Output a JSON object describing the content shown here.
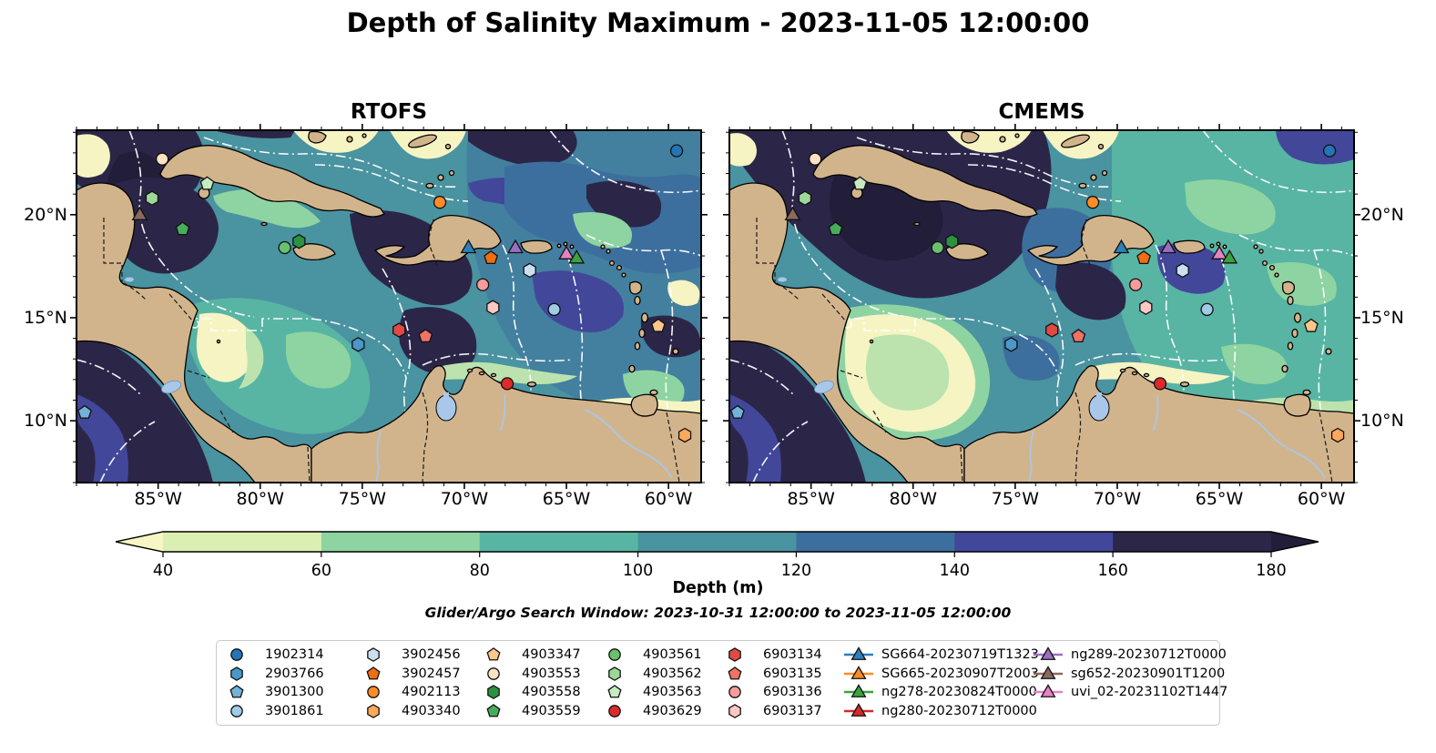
{
  "title": "Depth of Salinity Maximum - 2023-11-05 12:00:00",
  "subtitle": "Glider/Argo Search Window: 2023-10-31 12:00:00 to 2023-11-05 12:00:00",
  "panels": [
    {
      "id": "rtofs",
      "title": "RTOFS"
    },
    {
      "id": "cmems",
      "title": "CMEMS"
    }
  ],
  "axes": {
    "extent": {
      "lon_min": -89.0,
      "lon_max": -58.4,
      "lat_min": 7.0,
      "lat_max": 24.1
    },
    "lon_ticks": [
      {
        "v": -85,
        "label": "85°W"
      },
      {
        "v": -80,
        "label": "80°W"
      },
      {
        "v": -75,
        "label": "75°W"
      },
      {
        "v": -70,
        "label": "70°W"
      },
      {
        "v": -65,
        "label": "65°W"
      },
      {
        "v": -60,
        "label": "60°W"
      }
    ],
    "lat_ticks": [
      {
        "v": 20,
        "label": "20°N"
      },
      {
        "v": 15,
        "label": "15°N"
      },
      {
        "v": 10,
        "label": "10°N"
      }
    ]
  },
  "colorbar": {
    "label": "Depth (m)",
    "ticks": [
      40,
      60,
      80,
      100,
      120,
      140,
      160,
      180
    ],
    "under_color": "#f7f6c5",
    "over_color": "#221d38",
    "segment_colors": [
      "#dcefb2",
      "#8ed4a2",
      "#58b5a3",
      "#4a93a0",
      "#3c6f9e",
      "#42479a",
      "#2c2649"
    ]
  },
  "legend": {
    "floats": [
      {
        "id": "1902314",
        "shape": "circle",
        "color": "#2474b6"
      },
      {
        "id": "2903766",
        "shape": "hexagon",
        "color": "#4a97c9"
      },
      {
        "id": "3901300",
        "shape": "pentagon",
        "color": "#74b2d8"
      },
      {
        "id": "3901861",
        "shape": "circle",
        "color": "#a0cbe5"
      },
      {
        "id": "3902456",
        "shape": "hexagon",
        "color": "#cbdff0"
      },
      {
        "id": "3902457",
        "shape": "pentagon",
        "color": "#f06e12"
      },
      {
        "id": "4902113",
        "shape": "circle",
        "color": "#fd8c28"
      },
      {
        "id": "4903340",
        "shape": "hexagon",
        "color": "#fda85a"
      },
      {
        "id": "4903347",
        "shape": "pentagon",
        "color": "#fdc68c"
      },
      {
        "id": "4903553",
        "shape": "circle",
        "color": "#fee2c2"
      },
      {
        "id": "4903558",
        "shape": "hexagon",
        "color": "#2c9141"
      },
      {
        "id": "4903559",
        "shape": "pentagon",
        "color": "#46ad5a"
      },
      {
        "id": "4903561",
        "shape": "circle",
        "color": "#69c16d"
      },
      {
        "id": "4903562",
        "shape": "hexagon",
        "color": "#9cd898"
      },
      {
        "id": "4903563",
        "shape": "pentagon",
        "color": "#c8eac1"
      },
      {
        "id": "4903629",
        "shape": "circle",
        "color": "#dc2a2a"
      },
      {
        "id": "6903134",
        "shape": "hexagon",
        "color": "#e04a44"
      },
      {
        "id": "6903135",
        "shape": "pentagon",
        "color": "#ef7266"
      },
      {
        "id": "6903136",
        "shape": "circle",
        "color": "#f89b9b"
      },
      {
        "id": "6903137",
        "shape": "hexagon",
        "color": "#fcc8c4"
      }
    ],
    "gliders": [
      {
        "id": "SG664-20230719T1323",
        "color": "#2f7fb9"
      },
      {
        "id": "SG665-20230907T2003",
        "color": "#fb8c25"
      },
      {
        "id": "ng278-20230824T0000",
        "color": "#3aa23f"
      },
      {
        "id": "ng280-20230712T0000",
        "color": "#d42a2a"
      },
      {
        "id": "ng289-20230712T0000",
        "color": "#9a6fc0"
      },
      {
        "id": "sg652-20230901T1200",
        "color": "#8a6a5e"
      },
      {
        "id": "uvi_02-20231102T1447",
        "color": "#e583c0"
      }
    ]
  },
  "chart_data": {
    "type": "map",
    "title": "Depth of Salinity Maximum - 2023-11-05 12:00:00",
    "panels": [
      "RTOFS",
      "CMEMS"
    ],
    "variable": "Depth of salinity maximum",
    "colorbar": {
      "label": "Depth (m)",
      "ticks": [
        40,
        60,
        80,
        100,
        120,
        140,
        160,
        180
      ],
      "range": [
        40,
        180
      ],
      "extend": "both"
    },
    "extent": {
      "lon": [
        -89.0,
        -58.4
      ],
      "lat": [
        7.0,
        24.1
      ]
    },
    "markers": [
      {
        "id": "1902314",
        "shape": "circle",
        "color": "#2474b6",
        "lon": -59.6,
        "lat": 23.1
      },
      {
        "id": "4903553",
        "shape": "circle",
        "color": "#fee2c2",
        "lon": -84.8,
        "lat": 22.7
      },
      {
        "id": "4903563",
        "shape": "pentagon",
        "color": "#c8eac1",
        "lon": -82.6,
        "lat": 21.5
      },
      {
        "id": "4903562",
        "shape": "hexagon",
        "color": "#9cd898",
        "lon": -85.3,
        "lat": 20.8
      },
      {
        "id": "sg652-20230901T1200",
        "shape": "triangle",
        "color": "#8a6a5e",
        "lon": -85.9,
        "lat": 20.0
      },
      {
        "id": "4903559",
        "shape": "pentagon",
        "color": "#46ad5a",
        "lon": -83.8,
        "lat": 19.3
      },
      {
        "id": "4903561",
        "shape": "circle",
        "color": "#69c16d",
        "lon": -78.8,
        "lat": 18.4
      },
      {
        "id": "4903558",
        "shape": "hexagon",
        "color": "#2c9141",
        "lon": -78.1,
        "lat": 18.7
      },
      {
        "id": "4902113",
        "shape": "circle",
        "color": "#fd8c28",
        "lon": -71.2,
        "lat": 20.6
      },
      {
        "id": "SG664-20230719T1323",
        "shape": "triangle",
        "color": "#2f7fb9",
        "lon": -69.8,
        "lat": 18.4
      },
      {
        "id": "3902457",
        "shape": "pentagon",
        "color": "#f06e12",
        "lon": -68.7,
        "lat": 17.9
      },
      {
        "id": "ng289-20230712T0000",
        "shape": "triangle",
        "color": "#9a6fc0",
        "lon": -67.5,
        "lat": 18.4
      },
      {
        "id": "uvi_02-20231102T1447",
        "shape": "triangle",
        "color": "#e583c0",
        "lon": -65.0,
        "lat": 18.1
      },
      {
        "id": "ng278-20230824T0000",
        "shape": "triangle",
        "color": "#3aa23f",
        "lon": -64.5,
        "lat": 17.9
      },
      {
        "id": "3902456",
        "shape": "hexagon",
        "color": "#cbdff0",
        "lon": -66.8,
        "lat": 17.3
      },
      {
        "id": "6903136",
        "shape": "circle",
        "color": "#f89b9b",
        "lon": -69.1,
        "lat": 16.6
      },
      {
        "id": "6903137",
        "shape": "hexagon",
        "color": "#fcc8c4",
        "lon": -68.6,
        "lat": 15.5
      },
      {
        "id": "3901861",
        "shape": "circle",
        "color": "#a0cbe5",
        "lon": -65.6,
        "lat": 15.4
      },
      {
        "id": "2903766",
        "shape": "hexagon",
        "color": "#4a97c9",
        "lon": -75.2,
        "lat": 13.7
      },
      {
        "id": "6903134",
        "shape": "hexagon",
        "color": "#e04a44",
        "lon": -73.2,
        "lat": 14.4
      },
      {
        "id": "6903135",
        "shape": "pentagon",
        "color": "#ef7266",
        "lon": -71.9,
        "lat": 14.1
      },
      {
        "id": "4903629",
        "shape": "circle",
        "color": "#dc2a2a",
        "lon": -67.9,
        "lat": 11.8
      },
      {
        "id": "4903347",
        "shape": "pentagon",
        "color": "#fdc68c",
        "lon": -60.5,
        "lat": 14.6
      },
      {
        "id": "3901300",
        "shape": "pentagon",
        "color": "#74b2d8",
        "lon": -88.6,
        "lat": 10.4
      },
      {
        "id": "4903340",
        "shape": "hexagon",
        "color": "#fda85a",
        "lon": -59.2,
        "lat": 9.3
      }
    ]
  }
}
